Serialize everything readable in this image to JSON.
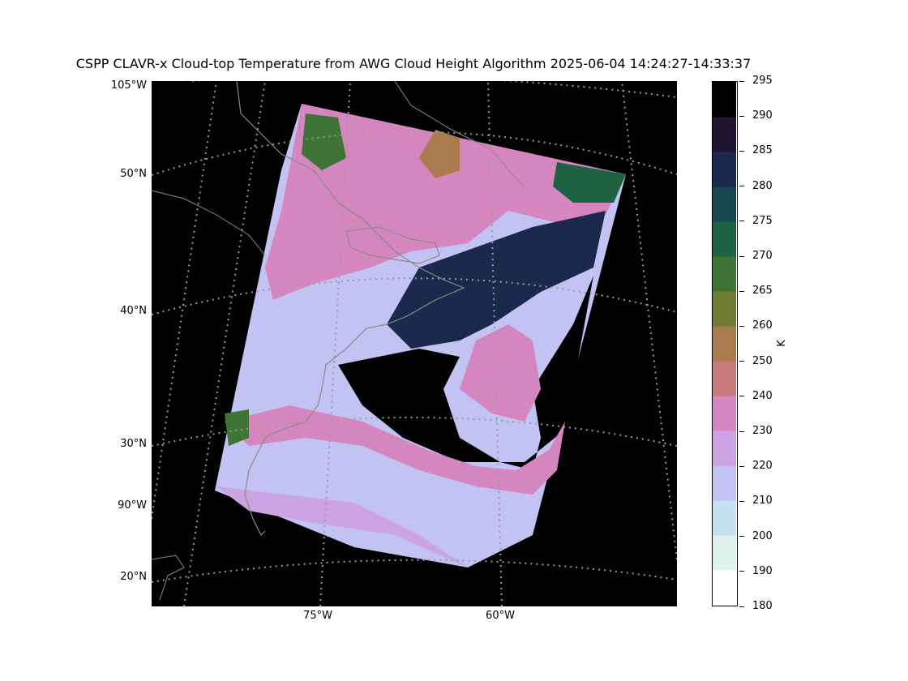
{
  "title": "CSPP CLAVR-x Cloud-top Temperature from AWG Cloud Height Algorithm 2025-06-04 14:24:27-14:33:37",
  "map": {
    "background": "#000000",
    "graticule_color": "#9a9a9a",
    "coast_color": "#8a8a8a",
    "lat_labels": [
      "105°W",
      "50°N",
      "40°N",
      "30°N",
      "90°W",
      "20°N"
    ],
    "lon_labels": [
      "75°W",
      "60°W"
    ]
  },
  "colorbar": {
    "unit": "K",
    "ticks": [
      "180",
      "190",
      "200",
      "210",
      "220",
      "230",
      "240",
      "250",
      "260",
      "265",
      "270",
      "275",
      "280",
      "285",
      "290",
      "295"
    ],
    "colors": [
      "#ffffff",
      "#dff3ee",
      "#c6e2f2",
      "#c3c3f3",
      "#cda4e3",
      "#d586bf",
      "#c97a7a",
      "#a97b4e",
      "#6f7b33",
      "#3e7436",
      "#1c6243",
      "#174650",
      "#1b2a4c",
      "#1c1430",
      "#000000"
    ]
  }
}
